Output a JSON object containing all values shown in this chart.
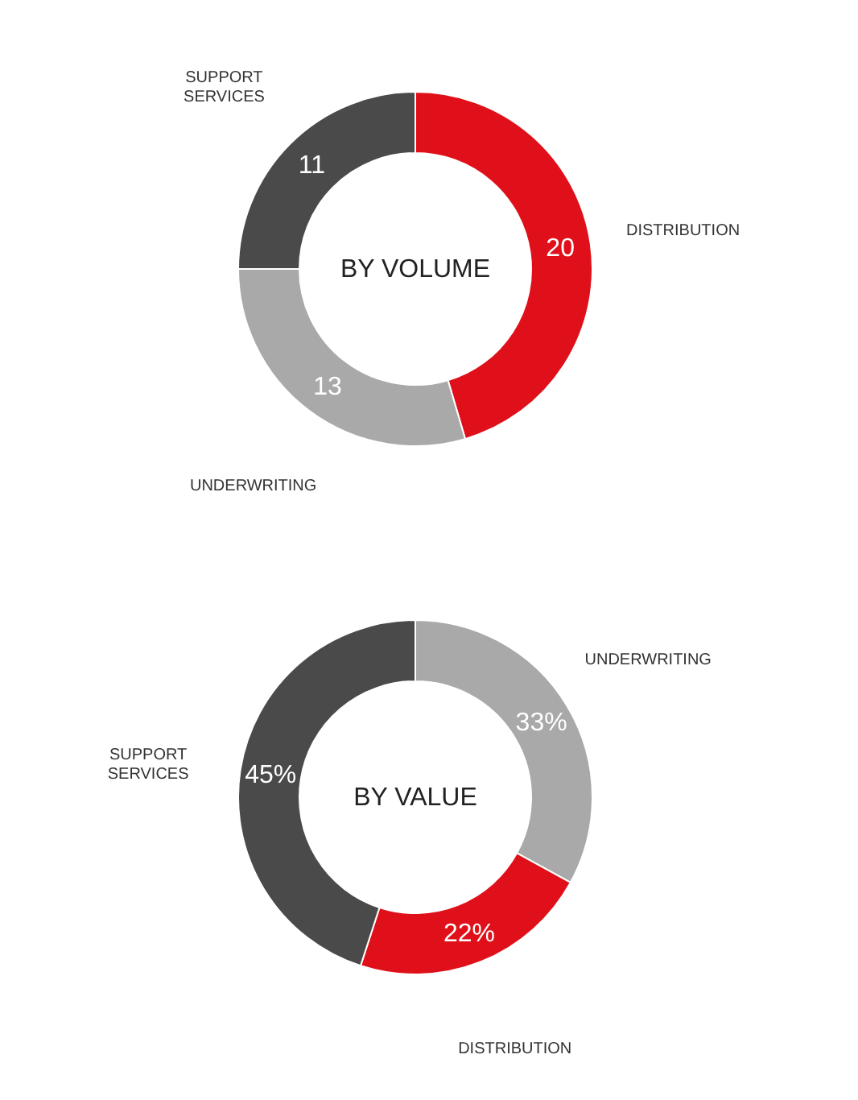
{
  "chart_data": [
    {
      "type": "donut",
      "title": "BY VOLUME",
      "categories": [
        "DISTRIBUTION",
        "UNDERWRITING",
        "SUPPORT SERVICES"
      ],
      "values": [
        20,
        13,
        11
      ],
      "colors": [
        "#e0101a",
        "#a9a9a9",
        "#4a4a4a"
      ],
      "data_labels": true
    },
    {
      "type": "donut",
      "title": "BY VALUE",
      "categories": [
        "UNDERWRITING",
        "DISTRIBUTION",
        "SUPPORT SERVICES"
      ],
      "values": [
        33,
        22,
        45
      ],
      "colors": [
        "#a9a9a9",
        "#e0101a",
        "#4a4a4a"
      ],
      "value_labels": [
        "33%",
        "22%",
        "45%"
      ]
    }
  ]
}
